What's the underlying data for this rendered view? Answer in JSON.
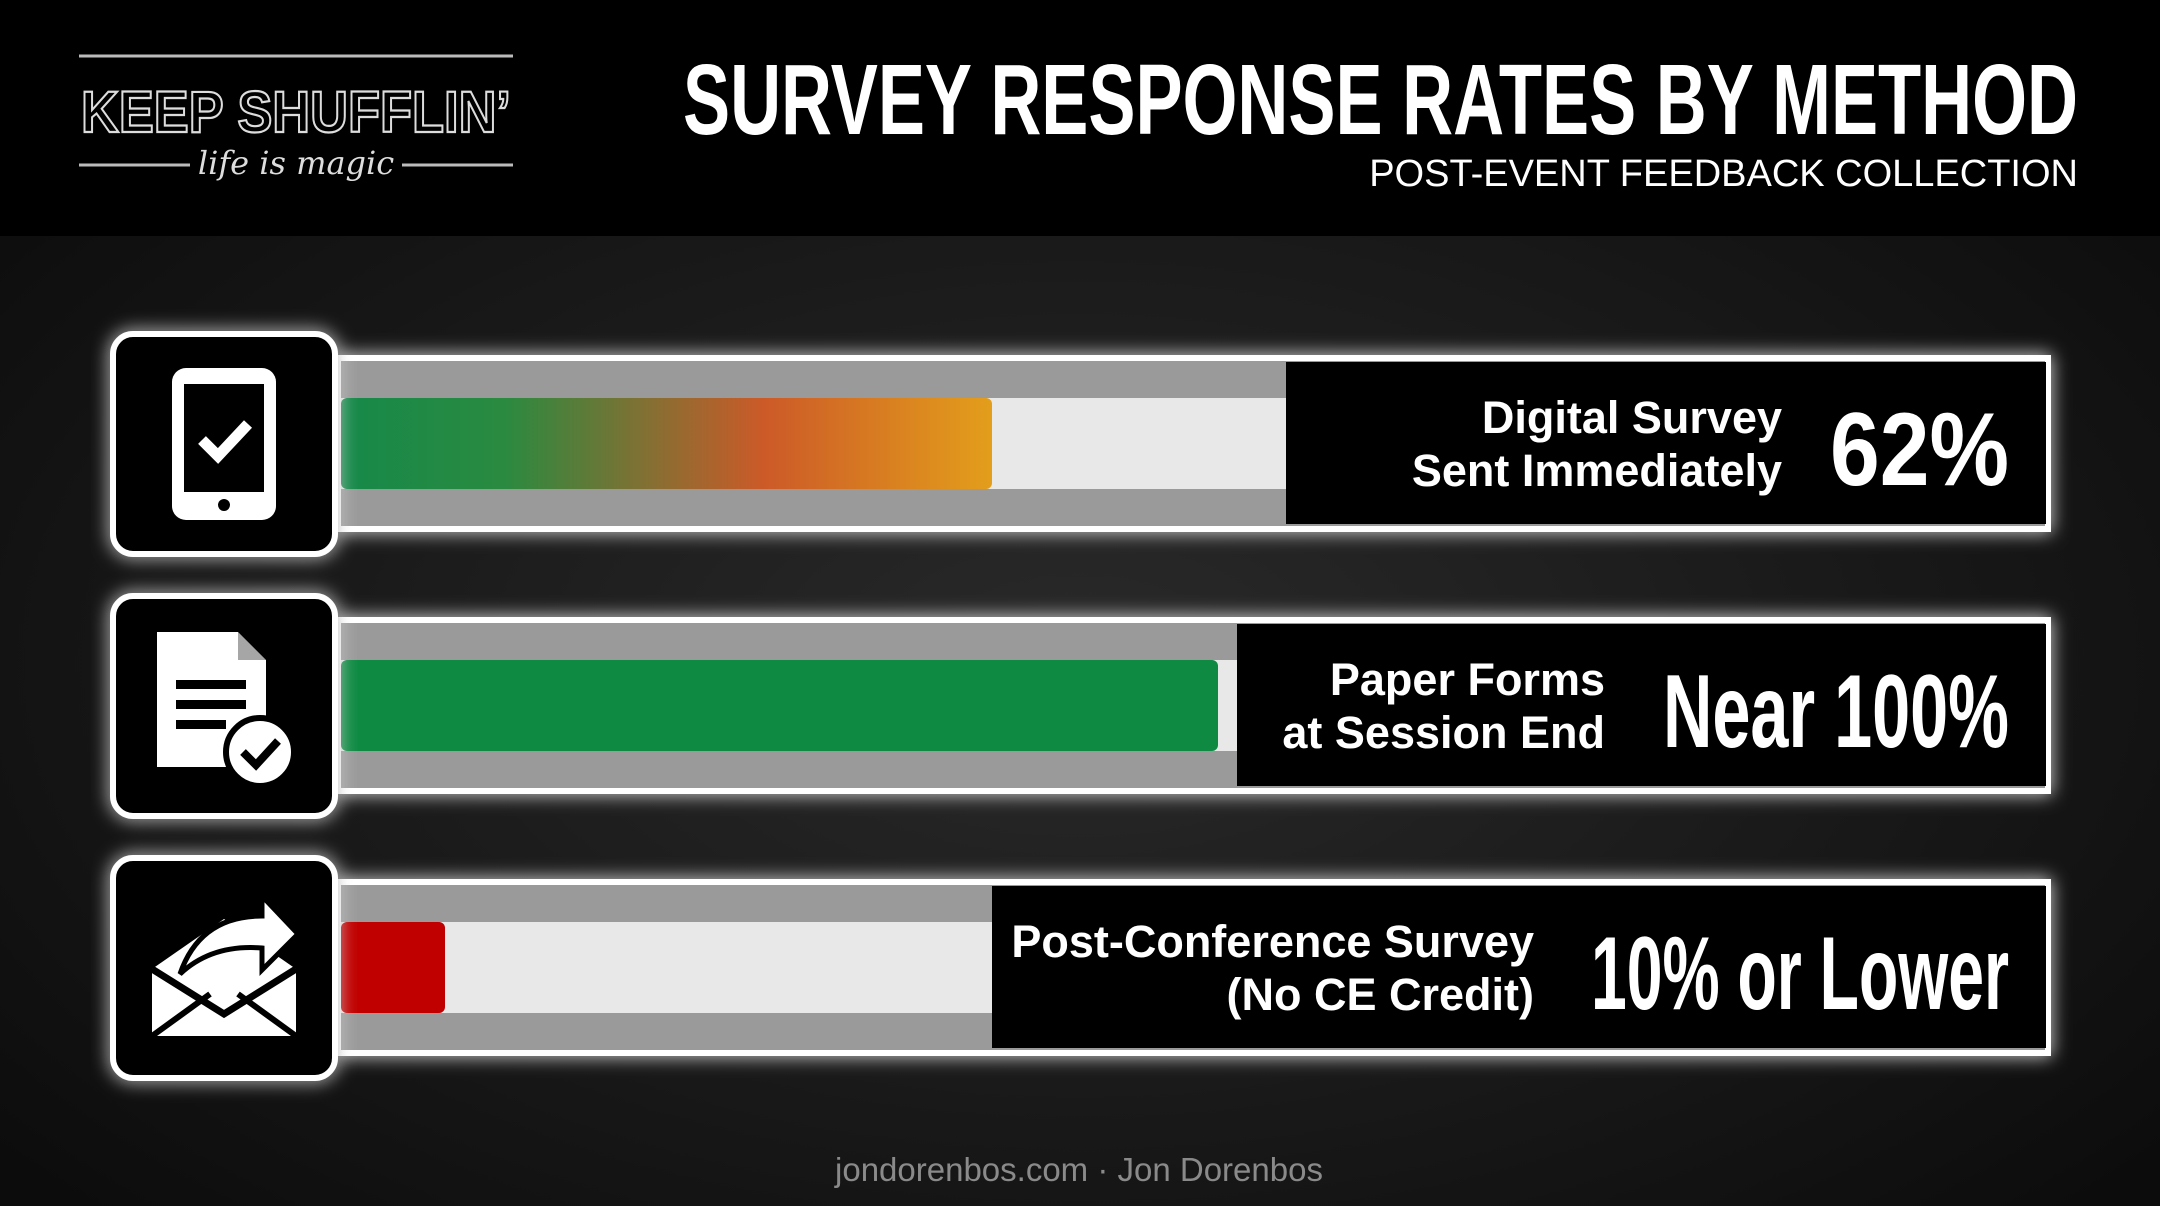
{
  "logo": {
    "name": "KEEP SHUFFLIN’",
    "tagline": "life is magic"
  },
  "title": "SURVEY RESPONSE RATES BY METHOD",
  "subtitle": "POST-EVENT FEEDBACK COLLECTION",
  "rows": [
    {
      "label": [
        "Digital Survey",
        "Sent Immediately"
      ],
      "value": "62%"
    },
    {
      "label": [
        "Paper Forms",
        "at Session End"
      ],
      "value": "Near 100%"
    },
    {
      "label": [
        "Post-Conference Survey",
        "(No CE Credit)"
      ],
      "value": "10% or Lower"
    }
  ],
  "footer": "jondorenbos.com · Jon Dorenbos"
}
